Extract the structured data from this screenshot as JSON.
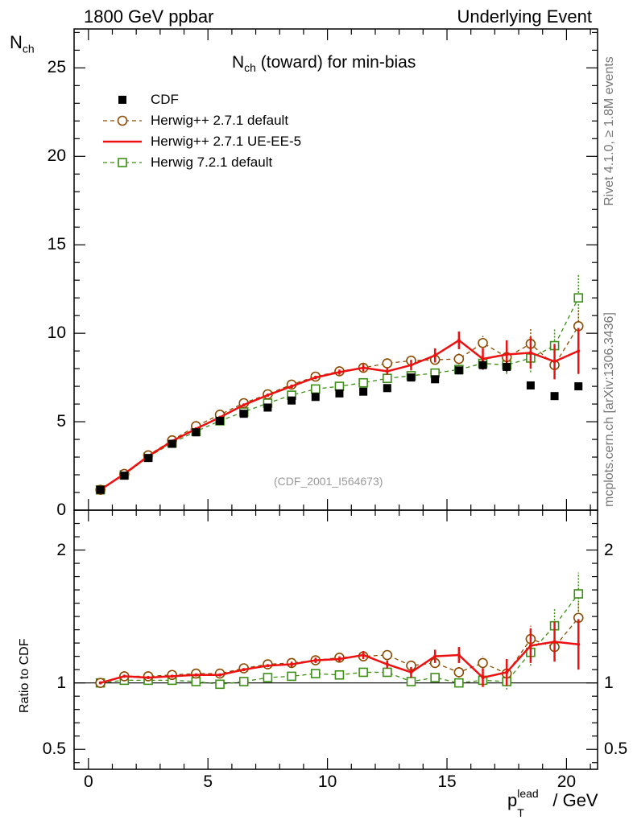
{
  "header": {
    "left": "1800 GeV ppbar",
    "right": "Underlying Event"
  },
  "side_labels": {
    "rivet": "Rivet 4.1.0, ≥ 1.8M events",
    "mcplots": "mcplots.cern.ch [arXiv:1306.3436]"
  },
  "colors": {
    "data": "#000000",
    "herwig_default": "#8b4a00",
    "herwig_ueee5": "#ee1111",
    "herwig72": "#3b8f14",
    "watermark": "#999999"
  },
  "chart_data": [
    {
      "type": "scatter",
      "panel": "main",
      "title_main": "N",
      "title_sub": "ch",
      "title_rest": " (toward) for min-bias",
      "ylabel_main": "N",
      "ylabel_sub": "ch",
      "ylim": [
        0,
        27.2
      ],
      "yticks": [
        0,
        5,
        10,
        15,
        20,
        25
      ],
      "xlim": [
        -0.6,
        21.3
      ],
      "watermark": "(CDF_2001_I564673)",
      "legend_position": "top-left",
      "x": [
        0.5,
        1.5,
        2.5,
        3.5,
        4.5,
        5.5,
        6.5,
        7.5,
        8.5,
        9.5,
        10.5,
        11.5,
        12.5,
        13.5,
        14.5,
        15.5,
        16.5,
        17.5,
        18.5,
        19.5,
        20.5
      ],
      "series": [
        {
          "name": "CDF",
          "style": "data",
          "values": [
            1.15,
            1.95,
            2.95,
            3.75,
            4.4,
            5.05,
            5.45,
            5.8,
            6.2,
            6.4,
            6.6,
            6.7,
            6.9,
            7.5,
            7.4,
            7.9,
            8.2,
            8.1,
            7.05,
            6.45,
            7.0
          ],
          "errors": [
            0.03,
            0.04,
            0.05,
            0.05,
            0.06,
            0.07,
            0.08,
            0.1,
            0.1,
            0.1,
            0.1,
            0.1,
            0.15,
            0.15,
            0.2,
            0.2,
            0.25,
            0.3,
            0.1,
            0.1,
            0.1
          ]
        },
        {
          "name": "Herwig++ 2.7.1 default",
          "style": "circle-dashed",
          "values": [
            1.15,
            2.05,
            3.1,
            3.95,
            4.75,
            5.4,
            6.05,
            6.55,
            7.1,
            7.55,
            7.85,
            8.05,
            8.3,
            8.45,
            8.5,
            8.55,
            9.45,
            8.65,
            9.4,
            8.2,
            10.4
          ],
          "errors": [
            0.02,
            0.03,
            0.04,
            0.05,
            0.05,
            0.06,
            0.07,
            0.08,
            0.08,
            0.1,
            0.12,
            0.15,
            0.15,
            0.2,
            0.25,
            0.3,
            0.4,
            0.5,
            0.9,
            0.8,
            1.0
          ]
        },
        {
          "name": "Herwig++ 2.7.1 UE-EE-5",
          "style": "line",
          "values": [
            1.15,
            2.05,
            3.05,
            3.9,
            4.6,
            5.25,
            5.95,
            6.5,
            7.0,
            7.5,
            7.8,
            8.05,
            7.85,
            8.2,
            8.75,
            9.6,
            8.55,
            8.8,
            8.9,
            8.4,
            9.0
          ],
          "errors": [
            0.02,
            0.03,
            0.04,
            0.05,
            0.05,
            0.06,
            0.07,
            0.08,
            0.1,
            0.1,
            0.15,
            0.2,
            0.2,
            0.3,
            0.4,
            0.5,
            0.6,
            0.8,
            0.9,
            1.0,
            1.3
          ]
        },
        {
          "name": "Herwig 7.2.1 default",
          "style": "square-dashed",
          "values": [
            1.15,
            2.0,
            3.0,
            3.8,
            4.45,
            5.05,
            5.55,
            6.05,
            6.5,
            6.85,
            7.0,
            7.2,
            7.45,
            7.6,
            7.75,
            7.95,
            8.3,
            8.2,
            8.6,
            9.3,
            12.0
          ],
          "errors": [
            0.02,
            0.03,
            0.04,
            0.05,
            0.05,
            0.06,
            0.07,
            0.08,
            0.08,
            0.1,
            0.12,
            0.12,
            0.15,
            0.2,
            0.2,
            0.25,
            0.35,
            0.5,
            0.8,
            1.0,
            1.35
          ]
        }
      ]
    },
    {
      "type": "line",
      "panel": "ratio",
      "ylabel": "Ratio to CDF",
      "ylim": [
        0.35,
        2.3
      ],
      "yticks": [
        0.5,
        1,
        2
      ],
      "yticklabels": [
        "0.5",
        "1",
        "2"
      ],
      "xlim": [
        -0.6,
        21.3
      ],
      "xticks": [
        0,
        5,
        10,
        15,
        20
      ],
      "xlabel_main": "p",
      "xlabel_sub": "T",
      "xlabel_sup": "lead",
      "xlabel_rest": " / GeV",
      "x": [
        0.5,
        1.5,
        2.5,
        3.5,
        4.5,
        5.5,
        6.5,
        7.5,
        8.5,
        9.5,
        10.5,
        11.5,
        12.5,
        13.5,
        14.5,
        15.5,
        16.5,
        17.5,
        18.5,
        19.5,
        20.5
      ],
      "series": [
        {
          "name": "Herwig++ 2.7.1 default",
          "style": "circle-dashed",
          "values": [
            1.0,
            1.05,
            1.05,
            1.06,
            1.07,
            1.07,
            1.11,
            1.14,
            1.15,
            1.17,
            1.19,
            1.2,
            1.21,
            1.13,
            1.15,
            1.08,
            1.15,
            1.07,
            1.33,
            1.27,
            1.49
          ],
          "errors": [
            0.01,
            0.01,
            0.01,
            0.01,
            0.01,
            0.01,
            0.01,
            0.01,
            0.01,
            0.01,
            0.02,
            0.02,
            0.02,
            0.03,
            0.03,
            0.04,
            0.05,
            0.06,
            0.1,
            0.1,
            0.12
          ]
        },
        {
          "name": "Herwig++ 2.7.1 UE-EE-5",
          "style": "line",
          "values": [
            1.0,
            1.05,
            1.04,
            1.05,
            1.06,
            1.06,
            1.1,
            1.13,
            1.14,
            1.17,
            1.18,
            1.21,
            1.14,
            1.08,
            1.2,
            1.21,
            1.04,
            1.08,
            1.28,
            1.31,
            1.29
          ],
          "errors": [
            0.01,
            0.01,
            0.01,
            0.01,
            0.01,
            0.01,
            0.01,
            0.01,
            0.02,
            0.02,
            0.02,
            0.03,
            0.03,
            0.04,
            0.05,
            0.06,
            0.07,
            0.1,
            0.13,
            0.15,
            0.19
          ]
        },
        {
          "name": "Herwig 7.2.1 default",
          "style": "square-dashed",
          "values": [
            1.0,
            1.02,
            1.02,
            1.02,
            1.01,
            0.99,
            1.01,
            1.04,
            1.05,
            1.07,
            1.06,
            1.08,
            1.08,
            1.01,
            1.04,
            1.0,
            1.02,
            1.01,
            1.23,
            1.43,
            1.67
          ],
          "errors": [
            0.01,
            0.01,
            0.01,
            0.01,
            0.01,
            0.01,
            0.01,
            0.01,
            0.01,
            0.01,
            0.02,
            0.02,
            0.02,
            0.03,
            0.03,
            0.03,
            0.05,
            0.06,
            0.1,
            0.13,
            0.16
          ]
        }
      ]
    }
  ]
}
